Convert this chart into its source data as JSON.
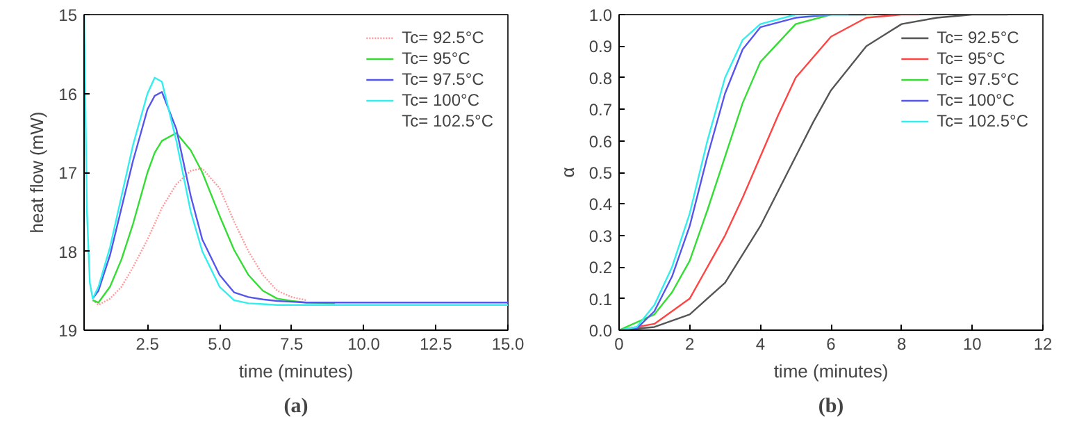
{
  "chart_data": [
    {
      "type": "line",
      "xlabel": "time (minutes)",
      "ylabel": "heat flow (mW)",
      "annotations": [
        "(a)"
      ],
      "xlim": [
        0.3,
        15
      ],
      "xticks": [
        {
          "value": 2.5,
          "label": "2.5"
        },
        {
          "value": 5,
          "label": "5.0"
        },
        {
          "value": 7.5,
          "label": "7.5"
        },
        {
          "value": 10,
          "label": "10.0"
        },
        {
          "value": 12.5,
          "label": "12.5"
        },
        {
          "value": 15,
          "label": "15.0"
        }
      ],
      "ylim": [
        19,
        15
      ],
      "yticks": [
        15,
        16,
        17,
        18,
        19
      ],
      "grid": false,
      "legend": "top right",
      "x": [
        0.3,
        0.4,
        0.5,
        0.6,
        0.8,
        1.2,
        1.6,
        2.0,
        2.5,
        2.75,
        3.0,
        3.5,
        4.0,
        4.4,
        5.0,
        5.5,
        6.0,
        6.5,
        7.0,
        7.5,
        8.0,
        9.0,
        10.0,
        12.5,
        15.0
      ],
      "series": [
        {
          "name": "Tc= 92.5°C",
          "color": "#ff9999",
          "line_style": "dotted",
          "values": [
            null,
            null,
            null,
            18.62,
            18.68,
            18.6,
            18.45,
            18.2,
            17.85,
            17.65,
            17.45,
            17.15,
            16.98,
            16.95,
            17.2,
            17.62,
            18.0,
            18.3,
            18.5,
            18.58,
            18.62,
            null,
            null,
            null,
            null
          ]
        },
        {
          "name": "Tc= 95°C",
          "color": "#33dd33",
          "values": [
            null,
            null,
            null,
            18.62,
            18.65,
            18.45,
            18.1,
            17.65,
            17.0,
            16.75,
            16.6,
            16.5,
            16.72,
            17.0,
            17.55,
            17.98,
            18.3,
            18.5,
            18.6,
            18.63,
            18.65,
            18.66,
            null,
            null,
            null
          ]
        },
        {
          "name": "Tc= 97.5°C",
          "color": "#5555ee",
          "values": [
            null,
            null,
            null,
            18.6,
            18.5,
            18.05,
            17.45,
            16.85,
            16.2,
            16.03,
            15.98,
            16.45,
            17.3,
            17.85,
            18.3,
            18.52,
            18.58,
            18.61,
            18.63,
            18.64,
            18.65,
            18.65,
            18.65,
            18.65,
            18.65
          ]
        },
        {
          "name": "Tc= 100°C",
          "color": "#33eeee",
          "values": [
            15.0,
            17.5,
            18.4,
            18.6,
            18.45,
            17.95,
            17.3,
            16.65,
            16.0,
            15.8,
            15.85,
            16.6,
            17.5,
            18.0,
            18.45,
            18.62,
            18.66,
            18.67,
            18.68,
            18.68,
            18.68,
            18.68,
            18.68,
            18.68,
            18.68
          ]
        },
        {
          "name": "Tc= 102.5°C",
          "values": [
            null,
            null,
            null,
            null,
            null,
            null,
            null,
            null,
            null,
            null,
            null,
            null,
            null,
            null,
            null,
            null,
            null,
            null,
            null,
            null,
            null,
            null,
            null,
            null,
            null
          ]
        }
      ]
    },
    {
      "type": "line",
      "xlabel": "time (minutes)",
      "ylabel": "α",
      "annotations": [
        "(b)"
      ],
      "xlim": [
        0,
        12
      ],
      "xticks": [
        0,
        2,
        4,
        6,
        8,
        10,
        12
      ],
      "ylim": [
        0,
        1
      ],
      "yticks": [
        {
          "value": 0,
          "label": "0.0"
        },
        {
          "value": 0.1,
          "label": "0.1"
        },
        {
          "value": 0.2,
          "label": "0.2"
        },
        {
          "value": 0.3,
          "label": "0.3"
        },
        {
          "value": 0.4,
          "label": "0.4"
        },
        {
          "value": 0.5,
          "label": "0.5"
        },
        {
          "value": 0.6,
          "label": "0.6"
        },
        {
          "value": 0.7,
          "label": "0.7"
        },
        {
          "value": 0.8,
          "label": "0.8"
        },
        {
          "value": 0.9,
          "label": "0.9"
        },
        {
          "value": 1.0,
          "label": "1.0"
        }
      ],
      "grid": false,
      "legend": "top right",
      "series": [
        {
          "name": "Tc= 92.5°C",
          "color": "#555555",
          "x": [
            0,
            1,
            2,
            3,
            4,
            4.5,
            5,
            5.5,
            6,
            7,
            8,
            9,
            10,
            11
          ],
          "values": [
            0,
            0.01,
            0.05,
            0.15,
            0.33,
            0.44,
            0.55,
            0.66,
            0.76,
            0.9,
            0.97,
            0.99,
            1.0,
            1.0
          ]
        },
        {
          "name": "Tc= 95°C",
          "color": "#ff4444",
          "x": [
            0,
            1,
            2,
            3,
            3.5,
            4,
            4.5,
            5,
            6,
            7,
            8,
            8.5
          ],
          "values": [
            0,
            0.02,
            0.1,
            0.3,
            0.42,
            0.55,
            0.68,
            0.8,
            0.93,
            0.99,
            1.0,
            1.0
          ]
        },
        {
          "name": "Tc= 97.5°C",
          "color": "#33dd33",
          "x": [
            0,
            1,
            1.5,
            2,
            2.5,
            3,
            3.5,
            4,
            5,
            6,
            7.2
          ],
          "values": [
            0,
            0.05,
            0.12,
            0.22,
            0.38,
            0.55,
            0.72,
            0.85,
            0.97,
            1.0,
            1.0
          ]
        },
        {
          "name": "Tc= 100°C",
          "color": "#5555ee",
          "x": [
            0,
            0.5,
            1,
            1.5,
            2,
            2.5,
            3,
            3.5,
            4,
            5,
            6,
            7
          ],
          "values": [
            0,
            0.005,
            0.06,
            0.17,
            0.33,
            0.55,
            0.75,
            0.89,
            0.96,
            0.99,
            1.0,
            1.0
          ]
        },
        {
          "name": "Tc= 102.5°C",
          "color": "#33eeee",
          "x": [
            0,
            0.5,
            1,
            1.5,
            2,
            2.5,
            3,
            3.5,
            4,
            5,
            6.5
          ],
          "values": [
            0,
            0.01,
            0.08,
            0.2,
            0.37,
            0.6,
            0.8,
            0.92,
            0.97,
            1.0,
            1.0
          ]
        }
      ]
    }
  ]
}
